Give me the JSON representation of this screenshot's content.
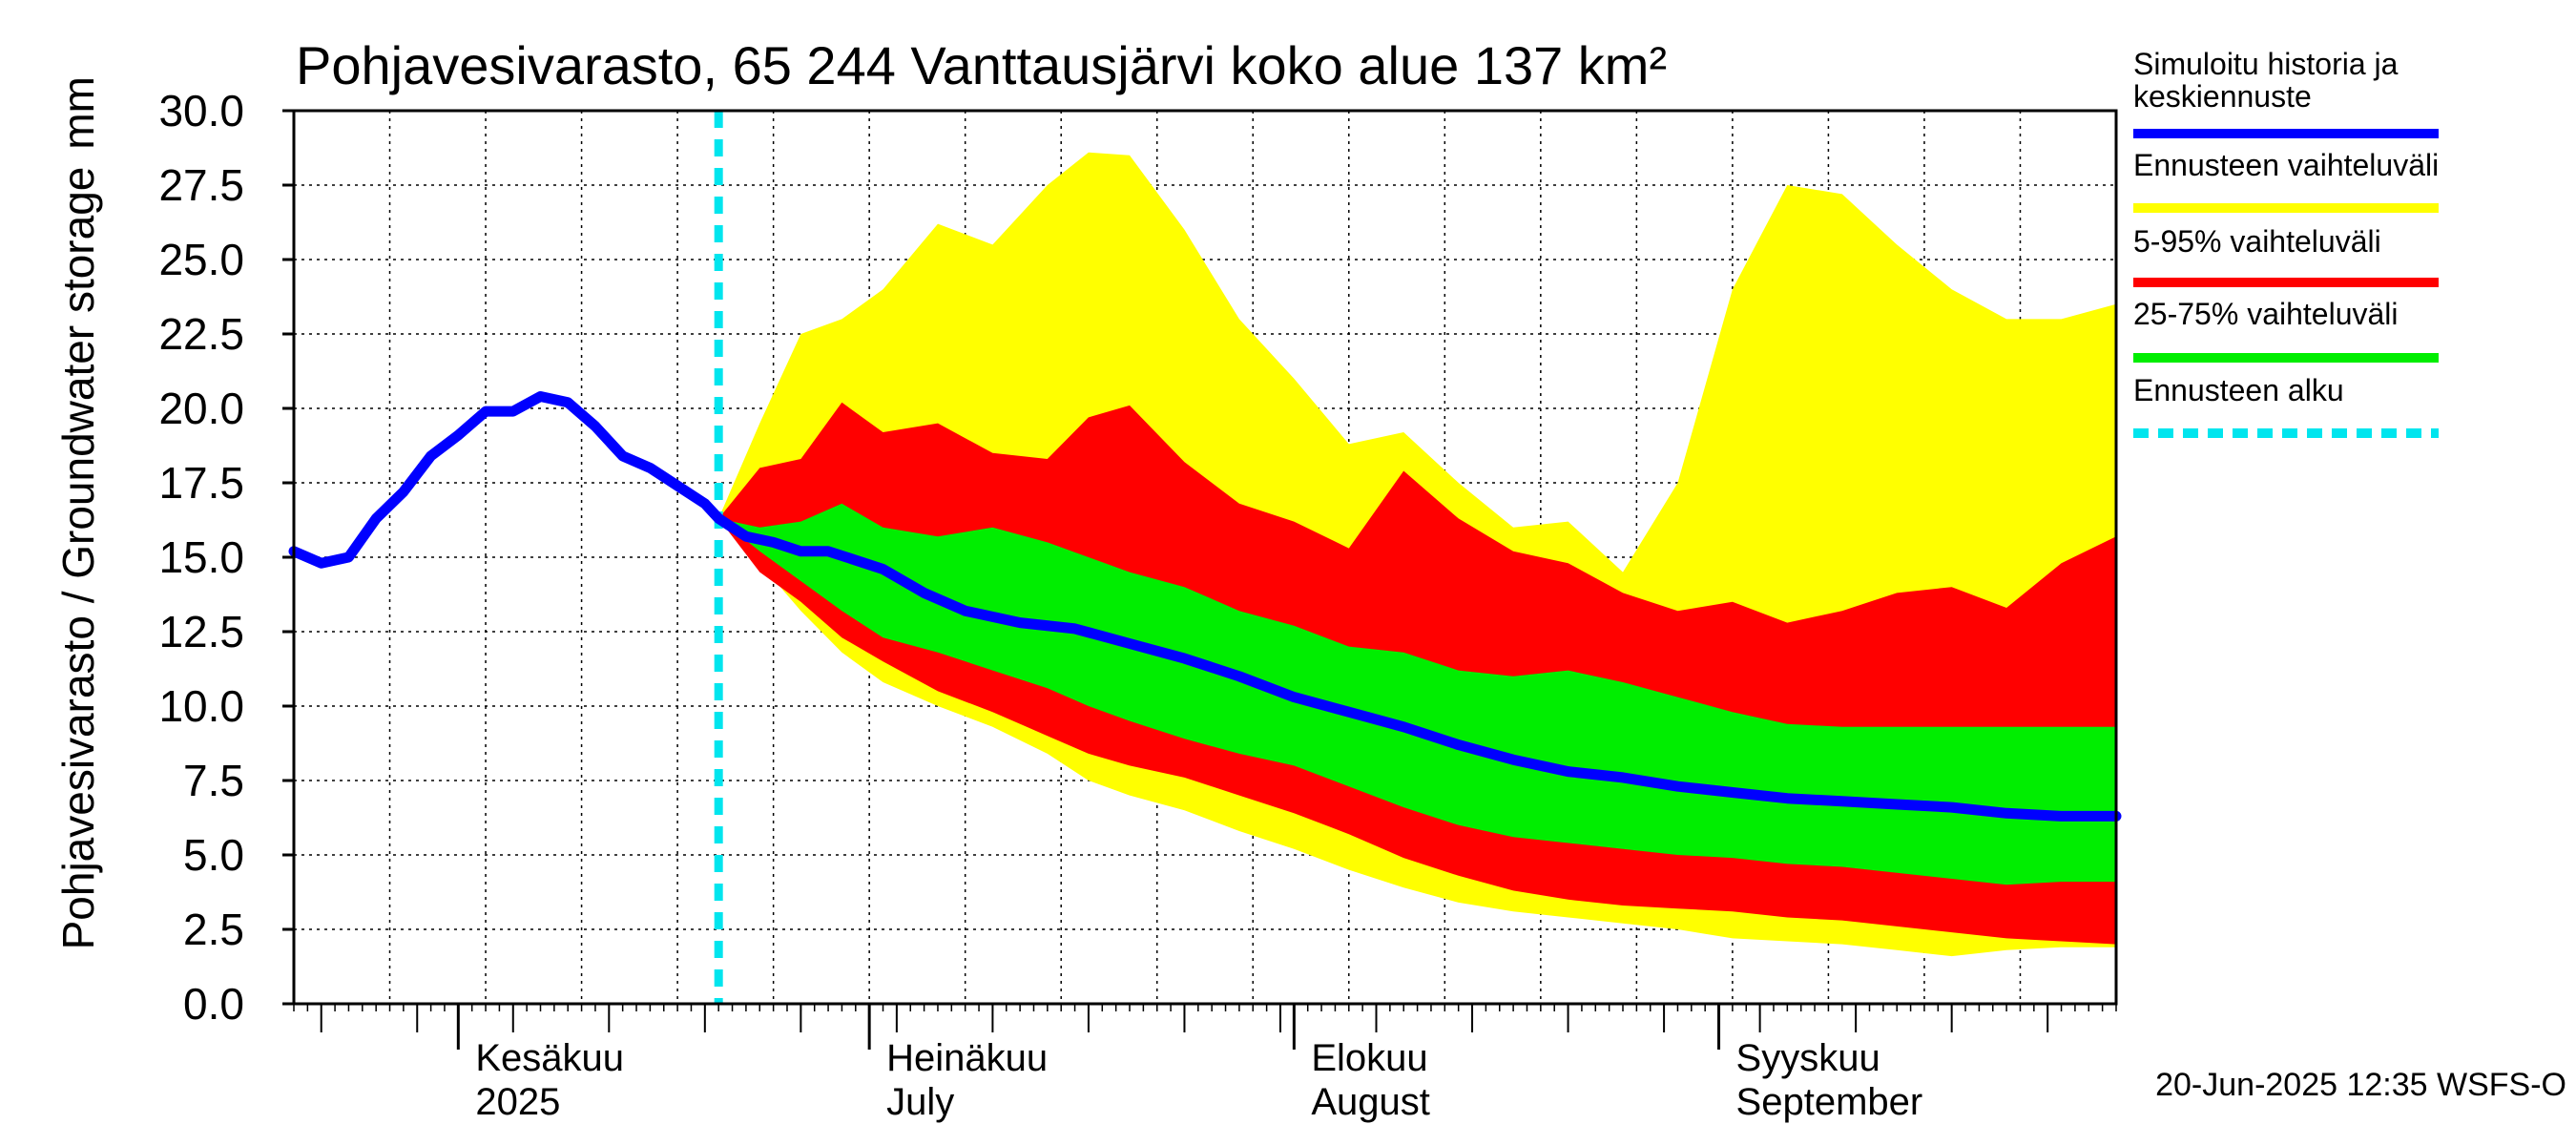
{
  "chart_data": {
    "type": "area",
    "title": "Pohjavesivarasto, 65 244 Vanttausjärvi koko alue 137 km²",
    "ylabel": "Pohjavesivarasto / Groundwater storage",
    "yunit": "mm",
    "ylim": [
      0,
      30
    ],
    "yticks": [
      "0.0",
      "2.5",
      "5.0",
      "7.5",
      "10.0",
      "12.5",
      "15.0",
      "17.5",
      "20.0",
      "22.5",
      "25.0",
      "27.5",
      "30.0"
    ],
    "xlim": [
      "2025-05-20",
      "2025-09-30"
    ],
    "forecast_start": "2025-06-20",
    "grid": true,
    "legend_position": "right",
    "month_labels": [
      {
        "date": "2025-06-01",
        "fi": "Kesäkuu",
        "en": "2025"
      },
      {
        "date": "2025-07-01",
        "fi": "Heinäkuu",
        "en": "July"
      },
      {
        "date": "2025-08-01",
        "fi": "Elokuu",
        "en": "August"
      },
      {
        "date": "2025-09-01",
        "fi": "Syyskuu",
        "en": "September"
      }
    ],
    "legend": [
      {
        "label": "Simuloitu historia ja keskiennuste",
        "color": "#0000ff",
        "style": "solid"
      },
      {
        "label": "Ennusteen vaihteluväli",
        "color": "#ffff00",
        "style": "solid"
      },
      {
        "label": "5-95% vaihteluväli",
        "color": "#ff0000",
        "style": "solid"
      },
      {
        "label": "25-75% vaihteluväli",
        "color": "#00ee00",
        "style": "solid"
      },
      {
        "label": "Ennusteen alku",
        "color": "#00e5ee",
        "style": "dashed"
      }
    ],
    "series": [
      {
        "name": "Simuloitu historia ja keskiennuste",
        "color": "#0000ff",
        "x": [
          "2025-05-20",
          "2025-05-22",
          "2025-05-24",
          "2025-05-26",
          "2025-05-28",
          "2025-05-30",
          "2025-06-01",
          "2025-06-03",
          "2025-06-05",
          "2025-06-07",
          "2025-06-09",
          "2025-06-11",
          "2025-06-13",
          "2025-06-15",
          "2025-06-17",
          "2025-06-19",
          "2025-06-20",
          "2025-06-22",
          "2025-06-24",
          "2025-06-26",
          "2025-06-28",
          "2025-06-30",
          "2025-07-02",
          "2025-07-05",
          "2025-07-08",
          "2025-07-12",
          "2025-07-16",
          "2025-07-20",
          "2025-07-24",
          "2025-07-28",
          "2025-08-01",
          "2025-08-05",
          "2025-08-09",
          "2025-08-13",
          "2025-08-17",
          "2025-08-21",
          "2025-08-25",
          "2025-08-29",
          "2025-09-02",
          "2025-09-06",
          "2025-09-10",
          "2025-09-14",
          "2025-09-18",
          "2025-09-22",
          "2025-09-26",
          "2025-09-30"
        ],
        "y": [
          15.2,
          14.8,
          15.0,
          16.3,
          17.2,
          18.4,
          19.1,
          19.9,
          19.9,
          20.4,
          20.2,
          19.4,
          18.4,
          18.0,
          17.4,
          16.8,
          16.3,
          15.7,
          15.5,
          15.2,
          15.2,
          14.9,
          14.6,
          13.8,
          13.2,
          12.8,
          12.6,
          12.1,
          11.6,
          11.0,
          10.3,
          9.8,
          9.3,
          8.7,
          8.2,
          7.8,
          7.6,
          7.3,
          7.1,
          6.9,
          6.8,
          6.7,
          6.6,
          6.4,
          6.3,
          6.3
        ]
      },
      {
        "name": "Ennusteen vaihteluväli",
        "color": "#ffff00",
        "x": [
          "2025-06-20",
          "2025-06-23",
          "2025-06-26",
          "2025-06-29",
          "2025-07-02",
          "2025-07-06",
          "2025-07-10",
          "2025-07-14",
          "2025-07-17",
          "2025-07-20",
          "2025-07-24",
          "2025-07-28",
          "2025-08-01",
          "2025-08-05",
          "2025-08-09",
          "2025-08-13",
          "2025-08-17",
          "2025-08-21",
          "2025-08-25",
          "2025-08-29",
          "2025-09-02",
          "2025-09-06",
          "2025-09-10",
          "2025-09-14",
          "2025-09-18",
          "2025-09-22",
          "2025-09-26",
          "2025-09-30"
        ],
        "upper": [
          16.3,
          19.5,
          22.5,
          23.0,
          24.0,
          26.2,
          25.5,
          27.5,
          28.6,
          28.5,
          26.0,
          23.0,
          21.0,
          18.8,
          19.2,
          17.5,
          16.0,
          16.2,
          14.5,
          17.5,
          24.0,
          27.5,
          27.2,
          25.5,
          24.0,
          23.0,
          23.0,
          23.5
        ],
        "lower": [
          16.3,
          14.8,
          13.2,
          11.8,
          10.8,
          10.0,
          9.3,
          8.4,
          7.5,
          7.0,
          6.5,
          5.8,
          5.2,
          4.5,
          3.9,
          3.4,
          3.1,
          2.9,
          2.7,
          2.5,
          2.2,
          2.1,
          2.0,
          1.8,
          1.6,
          1.8,
          1.9,
          1.9
        ]
      },
      {
        "name": "5-95% vaihteluväli",
        "color": "#ff0000",
        "x": [
          "2025-06-20",
          "2025-06-23",
          "2025-06-26",
          "2025-06-29",
          "2025-07-02",
          "2025-07-06",
          "2025-07-10",
          "2025-07-14",
          "2025-07-17",
          "2025-07-20",
          "2025-07-24",
          "2025-07-28",
          "2025-08-01",
          "2025-08-05",
          "2025-08-09",
          "2025-08-13",
          "2025-08-17",
          "2025-08-21",
          "2025-08-25",
          "2025-08-29",
          "2025-09-02",
          "2025-09-06",
          "2025-09-10",
          "2025-09-14",
          "2025-09-18",
          "2025-09-22",
          "2025-09-26",
          "2025-09-30"
        ],
        "upper": [
          16.3,
          18.0,
          18.3,
          20.2,
          19.2,
          19.5,
          18.5,
          18.3,
          19.7,
          20.1,
          18.2,
          16.8,
          16.2,
          15.3,
          17.9,
          16.3,
          15.2,
          14.8,
          13.8,
          13.2,
          13.5,
          12.8,
          13.2,
          13.8,
          14.0,
          13.3,
          14.8,
          15.7
        ],
        "lower": [
          16.3,
          14.5,
          13.5,
          12.3,
          11.5,
          10.5,
          9.8,
          9.0,
          8.4,
          8.0,
          7.6,
          7.0,
          6.4,
          5.7,
          4.9,
          4.3,
          3.8,
          3.5,
          3.3,
          3.2,
          3.1,
          2.9,
          2.8,
          2.6,
          2.4,
          2.2,
          2.1,
          2.0
        ]
      },
      {
        "name": "25-75% vaihteluväli",
        "color": "#00ee00",
        "x": [
          "2025-06-20",
          "2025-06-23",
          "2025-06-26",
          "2025-06-29",
          "2025-07-02",
          "2025-07-06",
          "2025-07-10",
          "2025-07-14",
          "2025-07-17",
          "2025-07-20",
          "2025-07-24",
          "2025-07-28",
          "2025-08-01",
          "2025-08-05",
          "2025-08-09",
          "2025-08-13",
          "2025-08-17",
          "2025-08-21",
          "2025-08-25",
          "2025-08-29",
          "2025-09-02",
          "2025-09-06",
          "2025-09-10",
          "2025-09-14",
          "2025-09-18",
          "2025-09-22",
          "2025-09-26",
          "2025-09-30"
        ],
        "upper": [
          16.3,
          16.0,
          16.2,
          16.8,
          16.0,
          15.7,
          16.0,
          15.5,
          15.0,
          14.5,
          14.0,
          13.2,
          12.7,
          12.0,
          11.8,
          11.2,
          11.0,
          11.2,
          10.8,
          10.3,
          9.8,
          9.4,
          9.3,
          9.3,
          9.3,
          9.3,
          9.3,
          9.3
        ],
        "lower": [
          16.3,
          15.2,
          14.2,
          13.2,
          12.3,
          11.8,
          11.2,
          10.6,
          10.0,
          9.5,
          8.9,
          8.4,
          8.0,
          7.3,
          6.6,
          6.0,
          5.6,
          5.4,
          5.2,
          5.0,
          4.9,
          4.7,
          4.6,
          4.4,
          4.2,
          4.0,
          4.1,
          4.1
        ]
      }
    ]
  },
  "footer": "20-Jun-2025 12:35 WSFS-O"
}
